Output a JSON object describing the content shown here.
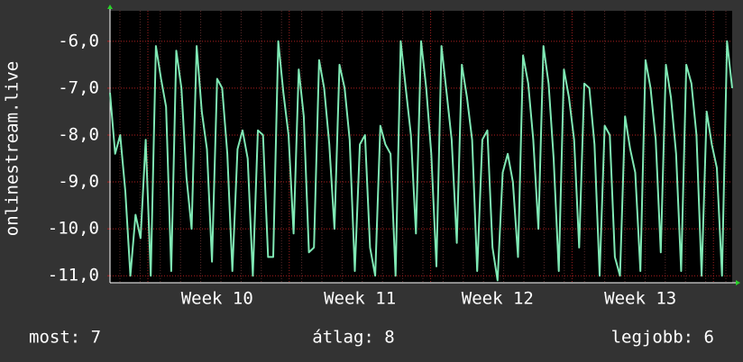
{
  "chart_data": {
    "type": "line",
    "y_label": "onlinestream.live",
    "series": [
      {
        "name": "onlinestream.live",
        "color": "#7fe8b4",
        "values": [
          -7.1,
          -8.4,
          -8.0,
          -9.2,
          -11.0,
          -9.7,
          -10.2,
          -8.1,
          -11.0,
          -6.1,
          -6.8,
          -7.4,
          -10.9,
          -6.2,
          -7.0,
          -8.9,
          -10.0,
          -6.1,
          -7.5,
          -8.3,
          -10.7,
          -6.8,
          -7.0,
          -8.4,
          -10.9,
          -8.3,
          -7.9,
          -8.5,
          -11.0,
          -7.9,
          -8.0,
          -10.6,
          -10.6,
          -6.0,
          -7.1,
          -8.0,
          -10.1,
          -6.6,
          -7.6,
          -10.5,
          -10.4,
          -6.4,
          -7.0,
          -8.2,
          -10.0,
          -6.5,
          -7.0,
          -8.1,
          -10.9,
          -8.2,
          -8.0,
          -10.4,
          -11.0,
          -7.8,
          -8.2,
          -8.4,
          -11.0,
          -6.0,
          -7.0,
          -8.0,
          -10.1,
          -6.0,
          -7.0,
          -8.4,
          -10.8,
          -6.1,
          -7.1,
          -8.1,
          -10.3,
          -6.5,
          -7.2,
          -8.1,
          -10.9,
          -8.1,
          -7.9,
          -10.4,
          -11.1,
          -8.8,
          -8.4,
          -9.0,
          -10.6,
          -6.3,
          -6.9,
          -8.1,
          -10.0,
          -6.1,
          -6.9,
          -8.5,
          -10.9,
          -6.6,
          -7.2,
          -8.1,
          -10.4,
          -6.9,
          -7.0,
          -8.2,
          -11.0,
          -7.8,
          -8.0,
          -10.6,
          -11.0,
          -7.6,
          -8.3,
          -8.8,
          -10.9,
          -6.4,
          -7.0,
          -8.1,
          -10.5,
          -6.5,
          -7.2,
          -8.4,
          -10.9,
          -6.5,
          -6.9,
          -8.0,
          -11.0,
          -7.5,
          -8.2,
          -8.7,
          -11.0,
          -6.0,
          -7.0
        ]
      }
    ],
    "xlim": [
      0,
      122
    ],
    "xticks": [
      {
        "value": 21,
        "label": "Week 10"
      },
      {
        "value": 49,
        "label": "Week 11"
      },
      {
        "value": 76,
        "label": "Week 12"
      },
      {
        "value": 104,
        "label": "Week 13"
      }
    ],
    "ylim": [
      -11.15,
      -5.35
    ],
    "yticks": [
      {
        "value": -6,
        "label": "-6,0"
      },
      {
        "value": -7,
        "label": "-7,0"
      },
      {
        "value": -8,
        "label": "-8,0"
      },
      {
        "value": -9,
        "label": "-9,0"
      },
      {
        "value": -10,
        "label": "-10,0"
      },
      {
        "value": -11,
        "label": "-11,0"
      }
    ],
    "grid": true,
    "footer": [
      "most: 7",
      "átlag: 8",
      "legjobb: 6"
    ]
  }
}
